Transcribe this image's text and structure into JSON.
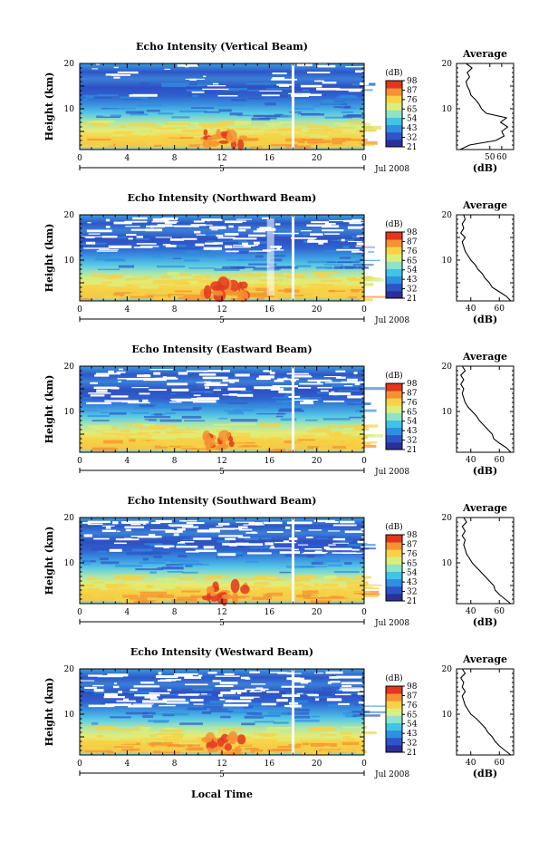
{
  "figure": {
    "x_label": "Local Time",
    "date_label": "Jul 2008",
    "date_tick": "5",
    "y_label": "Height (km)",
    "colorbar_unit": "(dB)",
    "colorbar_ticks": [
      "21",
      "32",
      "43",
      "54",
      "65",
      "76",
      "87",
      "98"
    ],
    "colors": [
      "#2b2f9a",
      "#2d55c8",
      "#2f8fe0",
      "#3fc4e8",
      "#8fe3c8",
      "#d8ef7c",
      "#f7d246",
      "#f59232",
      "#e3361e"
    ]
  },
  "chart_data": [
    {
      "type": "heatmap",
      "title": "Echo Intensity (Vertical Beam)",
      "x_ticks": [
        "0",
        "4",
        "8",
        "12",
        "16",
        "20",
        "0"
      ],
      "xlim": [
        0,
        24
      ],
      "ylim": [
        1,
        20
      ],
      "y_ticks": [
        "20",
        "10"
      ],
      "gap_hour": 18,
      "profile": {
        "title": "Average",
        "xlabel": "(dB)",
        "xlim": [
          22,
          70
        ],
        "x_ticks": [
          {
            "v": 50,
            "label": "50"
          },
          {
            "v": 60,
            "label": "60"
          }
        ],
        "y_ticks": [
          "20",
          "10"
        ],
        "points": [
          [
            25,
            1
          ],
          [
            33,
            2
          ],
          [
            55,
            3
          ],
          [
            62,
            4
          ],
          [
            60,
            5
          ],
          [
            65,
            6
          ],
          [
            59,
            7
          ],
          [
            64,
            8
          ],
          [
            47,
            9
          ],
          [
            43,
            10
          ],
          [
            41,
            11
          ],
          [
            38,
            12
          ],
          [
            34,
            13
          ],
          [
            33,
            14
          ],
          [
            31,
            15
          ],
          [
            30,
            16
          ],
          [
            33,
            17
          ],
          [
            31,
            18
          ],
          [
            35,
            19
          ],
          [
            30,
            20
          ]
        ]
      }
    },
    {
      "type": "heatmap",
      "title": "Echo Intensity (Northward Beam)",
      "x_ticks": [
        "0",
        "4",
        "8",
        "12",
        "16",
        "20",
        "0"
      ],
      "xlim": [
        0,
        24
      ],
      "ylim": [
        1,
        20
      ],
      "y_ticks": [
        "20",
        "10"
      ],
      "gap_hour": 18,
      "profile": {
        "title": "Average",
        "xlabel": "(dB)",
        "xlim": [
          30,
          70
        ],
        "x_ticks": [
          {
            "v": 40,
            "label": "40"
          },
          {
            "v": 60,
            "label": "60"
          }
        ],
        "y_ticks": [
          "20",
          "10"
        ],
        "points": [
          [
            68,
            1
          ],
          [
            65,
            2
          ],
          [
            60,
            3
          ],
          [
            55,
            4
          ],
          [
            53,
            5
          ],
          [
            50,
            6
          ],
          [
            48,
            7
          ],
          [
            45,
            8
          ],
          [
            43,
            9
          ],
          [
            40,
            10
          ],
          [
            38,
            11
          ],
          [
            36,
            12
          ],
          [
            35,
            13
          ],
          [
            34,
            14
          ],
          [
            36,
            15
          ],
          [
            33,
            16
          ],
          [
            35,
            17
          ],
          [
            34,
            18
          ],
          [
            36,
            19
          ],
          [
            35,
            20
          ]
        ]
      }
    },
    {
      "type": "heatmap",
      "title": "Echo Intensity (Eastward Beam)",
      "x_ticks": [
        "0",
        "4",
        "8",
        "12",
        "16",
        "20",
        "0"
      ],
      "xlim": [
        0,
        24
      ],
      "ylim": [
        1,
        20
      ],
      "y_ticks": [
        "20",
        "10"
      ],
      "gap_hour": 18,
      "profile": {
        "title": "Average",
        "xlabel": "(dB)",
        "xlim": [
          30,
          70
        ],
        "x_ticks": [
          {
            "v": 40,
            "label": "40"
          },
          {
            "v": 60,
            "label": "60"
          }
        ],
        "y_ticks": [
          "20",
          "10"
        ],
        "points": [
          [
            68,
            1
          ],
          [
            65,
            2
          ],
          [
            60,
            3
          ],
          [
            56,
            4
          ],
          [
            55,
            5
          ],
          [
            52,
            6
          ],
          [
            49,
            7
          ],
          [
            46,
            8
          ],
          [
            44,
            9
          ],
          [
            41,
            10
          ],
          [
            38,
            11
          ],
          [
            36,
            12
          ],
          [
            35,
            13
          ],
          [
            34,
            14
          ],
          [
            35,
            15
          ],
          [
            33,
            16
          ],
          [
            35,
            17
          ],
          [
            33,
            18
          ],
          [
            36,
            19
          ],
          [
            34,
            20
          ]
        ]
      }
    },
    {
      "type": "heatmap",
      "title": "Echo Intensity (Southward Beam)",
      "x_ticks": [
        "0",
        "4",
        "8",
        "12",
        "16",
        "20",
        "0"
      ],
      "xlim": [
        0,
        24
      ],
      "ylim": [
        1,
        20
      ],
      "y_ticks": [
        "20",
        "10"
      ],
      "gap_hour": 18,
      "profile": {
        "title": "Average",
        "xlabel": "(dB)",
        "xlim": [
          30,
          70
        ],
        "x_ticks": [
          {
            "v": 40,
            "label": "40"
          },
          {
            "v": 60,
            "label": "60"
          }
        ],
        "y_ticks": [
          "20",
          "10"
        ],
        "points": [
          [
            68,
            1
          ],
          [
            64,
            2
          ],
          [
            60,
            3
          ],
          [
            57,
            4
          ],
          [
            56,
            5
          ],
          [
            53,
            6
          ],
          [
            50,
            7
          ],
          [
            47,
            8
          ],
          [
            44,
            9
          ],
          [
            41,
            10
          ],
          [
            39,
            11
          ],
          [
            37,
            12
          ],
          [
            36,
            13
          ],
          [
            35,
            14
          ],
          [
            36,
            15
          ],
          [
            34,
            16
          ],
          [
            36,
            17
          ],
          [
            34,
            18
          ],
          [
            37,
            19
          ],
          [
            35,
            20
          ]
        ]
      }
    },
    {
      "type": "heatmap",
      "title": "Echo Intensity (Westward Beam)",
      "x_ticks": [
        "0",
        "4",
        "8",
        "12",
        "16",
        "20",
        "0"
      ],
      "xlim": [
        0,
        24
      ],
      "ylim": [
        1,
        20
      ],
      "y_ticks": [
        "20",
        "10"
      ],
      "gap_hour": 18,
      "profile": {
        "title": "Average",
        "xlabel": "(dB)",
        "xlim": [
          30,
          70
        ],
        "x_ticks": [
          {
            "v": 40,
            "label": "40"
          },
          {
            "v": 60,
            "label": "60"
          }
        ],
        "y_ticks": [
          "20",
          "10"
        ],
        "points": [
          [
            68,
            1
          ],
          [
            64,
            2
          ],
          [
            60,
            3
          ],
          [
            57,
            4
          ],
          [
            55,
            5
          ],
          [
            52,
            6
          ],
          [
            50,
            7
          ],
          [
            47,
            8
          ],
          [
            44,
            9
          ],
          [
            40,
            10
          ],
          [
            38,
            11
          ],
          [
            36,
            12
          ],
          [
            35,
            13
          ],
          [
            34,
            14
          ],
          [
            36,
            15
          ],
          [
            34,
            16
          ],
          [
            35,
            17
          ],
          [
            33,
            18
          ],
          [
            36,
            19
          ],
          [
            34,
            20
          ]
        ]
      }
    }
  ]
}
